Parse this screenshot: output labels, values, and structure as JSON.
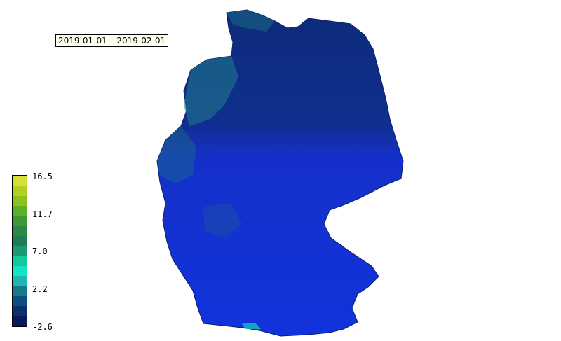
{
  "date_range": "2019-01-01 – 2019-02-01",
  "legend": {
    "ticks": [
      "16.5",
      "11.7",
      "7.0",
      "2.2",
      "-2.6"
    ],
    "colors": [
      "#d6df33",
      "#b2cf24",
      "#8cc21c",
      "#5fae2a",
      "#3f9a36",
      "#2a8a45",
      "#1f7d56",
      "#199a70",
      "#12c99a",
      "#10e6c2",
      "#1db8b0",
      "#157a8a",
      "#0d4d84",
      "#0b2e6f",
      "#091a5a"
    ]
  },
  "map": {
    "region": "Germany",
    "dominant_colors": {
      "north": "#0c2f7a",
      "south": "#1233dc",
      "coast": "#1f7f8c"
    }
  }
}
